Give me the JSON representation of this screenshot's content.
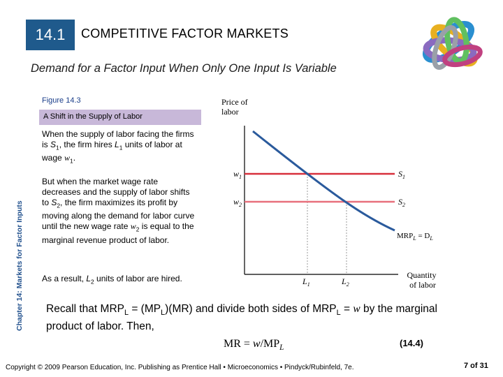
{
  "header": {
    "section_number": "14.1",
    "section_title": "COMPETITIVE FACTOR MARKETS",
    "subtitle": "Demand for a Factor Input When Only One Input Is Variable"
  },
  "figure": {
    "label": "Figure 14.3",
    "title": "A Shift in the Supply of Labor"
  },
  "side_label": "Chapter 14: Markets for Factor Inputs",
  "paragraphs": {
    "p1": {
      "a": "When the supply of labor facing the firms is ",
      "s": "S",
      "s_sub": "1",
      "b": ", the firm hires ",
      "l": "L",
      "l_sub": "1",
      "c": " units of labor at wage ",
      "w": "w",
      "w_sub": "1",
      "d": "."
    },
    "p2": {
      "a": "But when the market wage rate decreases and the supply of labor shifts to ",
      "s": "S",
      "s_sub": "2",
      "b": ", the firm maximizes its profit by moving along the demand for labor curve until the new wage rate ",
      "w": "w",
      "w_sub": "2",
      "c": " is equal to the marginal revenue product of labor."
    },
    "p3": {
      "a": "As a result, ",
      "l": "L",
      "l_sub": "2",
      "b": " units of labor are hired."
    }
  },
  "recall": {
    "a": "Recall that MRP",
    "sub1": "L",
    "b": " = (MP",
    "sub2": "L",
    "c": ")(MR) and divide both sides of MRP",
    "sub3": "L",
    "d": " = ",
    "w": "w",
    "e": " by the marginal product of labor. Then,"
  },
  "formula": {
    "lhs": "MR = ",
    "w": "w",
    "slash": "/MP",
    "sub": "L"
  },
  "equation_number": "(14.4)",
  "footer": "Copyright © 2009 Pearson Education, Inc. Publishing as Prentice Hall • Microeconomics • Pindyck/Rubinfeld, 7e.",
  "pager": "7 of 31",
  "chart_data": {
    "type": "line",
    "ylabel": "Price of labor",
    "xlabel": "Quantity of labor",
    "y_ticks": [
      {
        "label": "w",
        "sub": "1"
      },
      {
        "label": "w",
        "sub": "2"
      }
    ],
    "x_ticks": [
      {
        "label": "L",
        "sub": "1"
      },
      {
        "label": "L",
        "sub": "2"
      }
    ],
    "series": [
      {
        "name": "S",
        "name_sub": "1",
        "kind": "horizontal",
        "level": "w1",
        "color": "#d8303c"
      },
      {
        "name": "S",
        "name_sub": "2",
        "kind": "horizontal",
        "level": "w2",
        "color": "#e8707c"
      },
      {
        "name": "MRP",
        "name_sub": "L",
        "suffix": " = D",
        "suffix_sub": "L",
        "kind": "demand",
        "color": "#2a5a9c"
      }
    ],
    "grid": false
  },
  "colors": {
    "section_box": "#1f5a8c",
    "figure_bar": "#c8b8d9",
    "side_label": "#1f4f8c",
    "s1": "#d8303c",
    "s2": "#e8707c",
    "demand": "#2a5a9c"
  }
}
